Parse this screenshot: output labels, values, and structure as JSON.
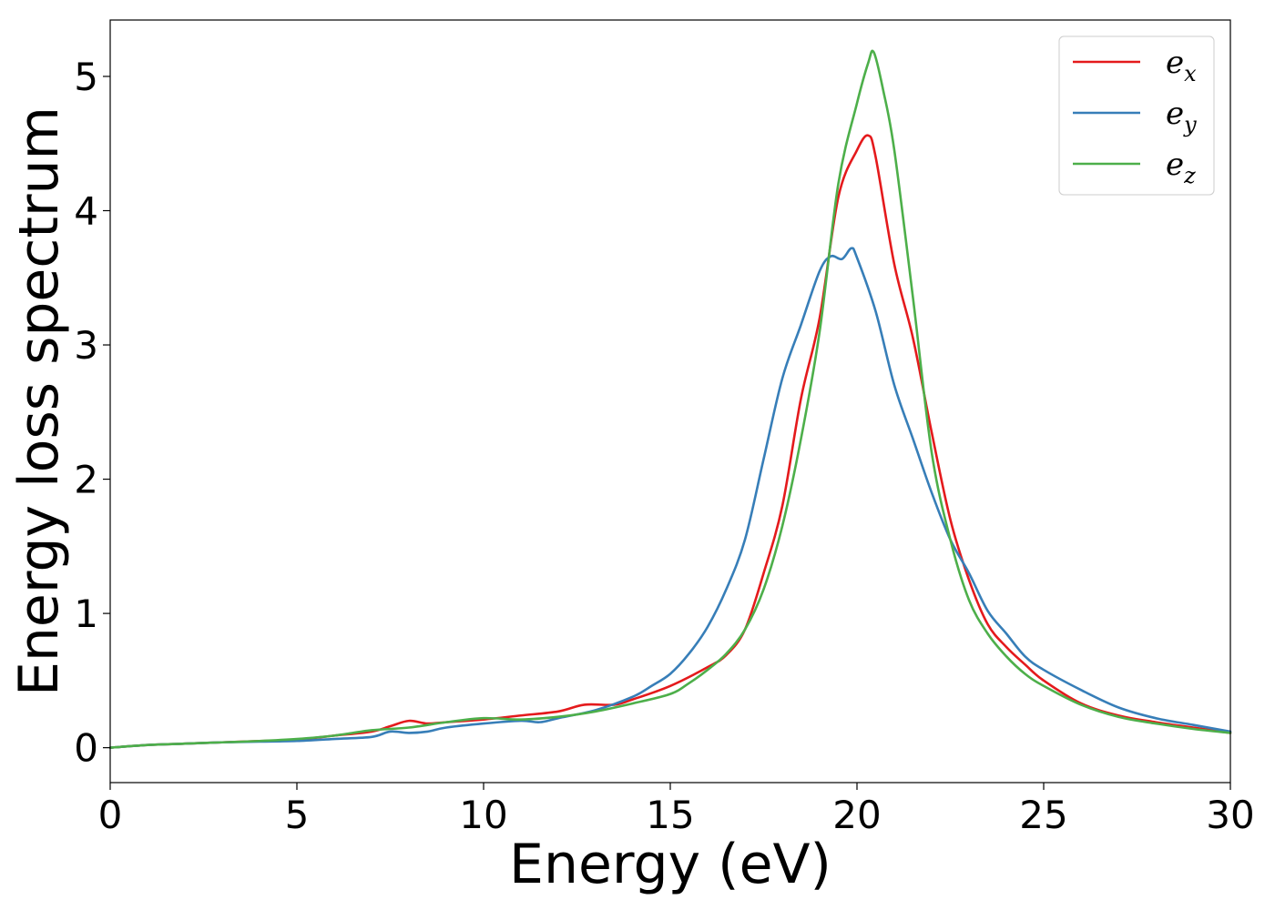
{
  "chart_data": {
    "type": "line",
    "xlabel": "Energy (eV)",
    "ylabel": "Energy loss spectrum",
    "xlim": [
      0,
      30
    ],
    "ylim": [
      -0.26,
      5.42
    ],
    "x_ticks": [
      0,
      5,
      10,
      15,
      20,
      25,
      30
    ],
    "y_ticks": [
      0,
      1,
      2,
      3,
      4,
      5
    ],
    "grid": false,
    "legend_position": "top-right",
    "series": [
      {
        "name": "e_x",
        "label_base": "e",
        "label_sub": "x",
        "color": "#e41a1c",
        "points": [
          [
            0,
            0
          ],
          [
            1,
            0.02
          ],
          [
            2,
            0.03
          ],
          [
            3,
            0.04
          ],
          [
            4,
            0.05
          ],
          [
            5,
            0.06
          ],
          [
            6,
            0.09
          ],
          [
            7,
            0.12
          ],
          [
            7.5,
            0.16
          ],
          [
            8,
            0.2
          ],
          [
            8.5,
            0.18
          ],
          [
            9,
            0.19
          ],
          [
            10,
            0.21
          ],
          [
            11,
            0.24
          ],
          [
            12,
            0.27
          ],
          [
            12.7,
            0.32
          ],
          [
            13.5,
            0.32
          ],
          [
            14,
            0.36
          ],
          [
            15,
            0.46
          ],
          [
            16,
            0.6
          ],
          [
            16.5,
            0.69
          ],
          [
            17,
            0.88
          ],
          [
            17.5,
            1.3
          ],
          [
            18,
            1.8
          ],
          [
            18.5,
            2.6
          ],
          [
            19,
            3.2
          ],
          [
            19.5,
            4.1
          ],
          [
            20,
            4.45
          ],
          [
            20.3,
            4.56
          ],
          [
            20.5,
            4.4
          ],
          [
            21,
            3.6
          ],
          [
            21.5,
            3.05
          ],
          [
            22,
            2.35
          ],
          [
            22.5,
            1.7
          ],
          [
            23,
            1.25
          ],
          [
            23.5,
            0.92
          ],
          [
            24,
            0.75
          ],
          [
            24.5,
            0.62
          ],
          [
            25,
            0.5
          ],
          [
            26,
            0.33
          ],
          [
            27,
            0.24
          ],
          [
            28,
            0.19
          ],
          [
            29,
            0.15
          ],
          [
            30,
            0.11
          ]
        ]
      },
      {
        "name": "e_y",
        "label_base": "e",
        "label_sub": "y",
        "color": "#377eb8",
        "points": [
          [
            0,
            0
          ],
          [
            1,
            0.02
          ],
          [
            2,
            0.03
          ],
          [
            3,
            0.04
          ],
          [
            4,
            0.045
          ],
          [
            5,
            0.05
          ],
          [
            6,
            0.065
          ],
          [
            7,
            0.08
          ],
          [
            7.5,
            0.12
          ],
          [
            8,
            0.11
          ],
          [
            8.5,
            0.12
          ],
          [
            9,
            0.15
          ],
          [
            10,
            0.18
          ],
          [
            11,
            0.2
          ],
          [
            11.5,
            0.19
          ],
          [
            12,
            0.22
          ],
          [
            13,
            0.28
          ],
          [
            14,
            0.38
          ],
          [
            14.5,
            0.46
          ],
          [
            15,
            0.55
          ],
          [
            15.5,
            0.7
          ],
          [
            16,
            0.9
          ],
          [
            16.5,
            1.18
          ],
          [
            17,
            1.55
          ],
          [
            17.5,
            2.15
          ],
          [
            18,
            2.75
          ],
          [
            18.5,
            3.15
          ],
          [
            19,
            3.55
          ],
          [
            19.3,
            3.66
          ],
          [
            19.6,
            3.64
          ],
          [
            19.85,
            3.72
          ],
          [
            20,
            3.65
          ],
          [
            20.5,
            3.25
          ],
          [
            21,
            2.7
          ],
          [
            21.5,
            2.3
          ],
          [
            22,
            1.9
          ],
          [
            22.5,
            1.55
          ],
          [
            23,
            1.3
          ],
          [
            23.5,
            1.02
          ],
          [
            24,
            0.85
          ],
          [
            24.5,
            0.68
          ],
          [
            25,
            0.58
          ],
          [
            26,
            0.43
          ],
          [
            27,
            0.3
          ],
          [
            28,
            0.22
          ],
          [
            29,
            0.17
          ],
          [
            30,
            0.12
          ]
        ]
      },
      {
        "name": "e_z",
        "label_base": "e",
        "label_sub": "z",
        "color": "#4daf4a",
        "points": [
          [
            0,
            0
          ],
          [
            1,
            0.02
          ],
          [
            2,
            0.03
          ],
          [
            3,
            0.04
          ],
          [
            4,
            0.05
          ],
          [
            5,
            0.065
          ],
          [
            6,
            0.09
          ],
          [
            7,
            0.13
          ],
          [
            8,
            0.15
          ],
          [
            9,
            0.19
          ],
          [
            10,
            0.22
          ],
          [
            11,
            0.21
          ],
          [
            12,
            0.23
          ],
          [
            13,
            0.27
          ],
          [
            14,
            0.33
          ],
          [
            15,
            0.4
          ],
          [
            15.5,
            0.48
          ],
          [
            16,
            0.58
          ],
          [
            16.5,
            0.7
          ],
          [
            17,
            0.88
          ],
          [
            17.5,
            1.18
          ],
          [
            18,
            1.65
          ],
          [
            18.5,
            2.3
          ],
          [
            19,
            3.1
          ],
          [
            19.5,
            4.2
          ],
          [
            20,
            4.8
          ],
          [
            20.3,
            5.1
          ],
          [
            20.45,
            5.18
          ],
          [
            20.7,
            4.9
          ],
          [
            21,
            4.45
          ],
          [
            21.5,
            3.35
          ],
          [
            22,
            2.2
          ],
          [
            22.5,
            1.55
          ],
          [
            23,
            1.1
          ],
          [
            23.5,
            0.85
          ],
          [
            24,
            0.68
          ],
          [
            24.5,
            0.55
          ],
          [
            25,
            0.46
          ],
          [
            26,
            0.32
          ],
          [
            27,
            0.23
          ],
          [
            28,
            0.18
          ],
          [
            29,
            0.14
          ],
          [
            30,
            0.11
          ]
        ]
      }
    ]
  }
}
